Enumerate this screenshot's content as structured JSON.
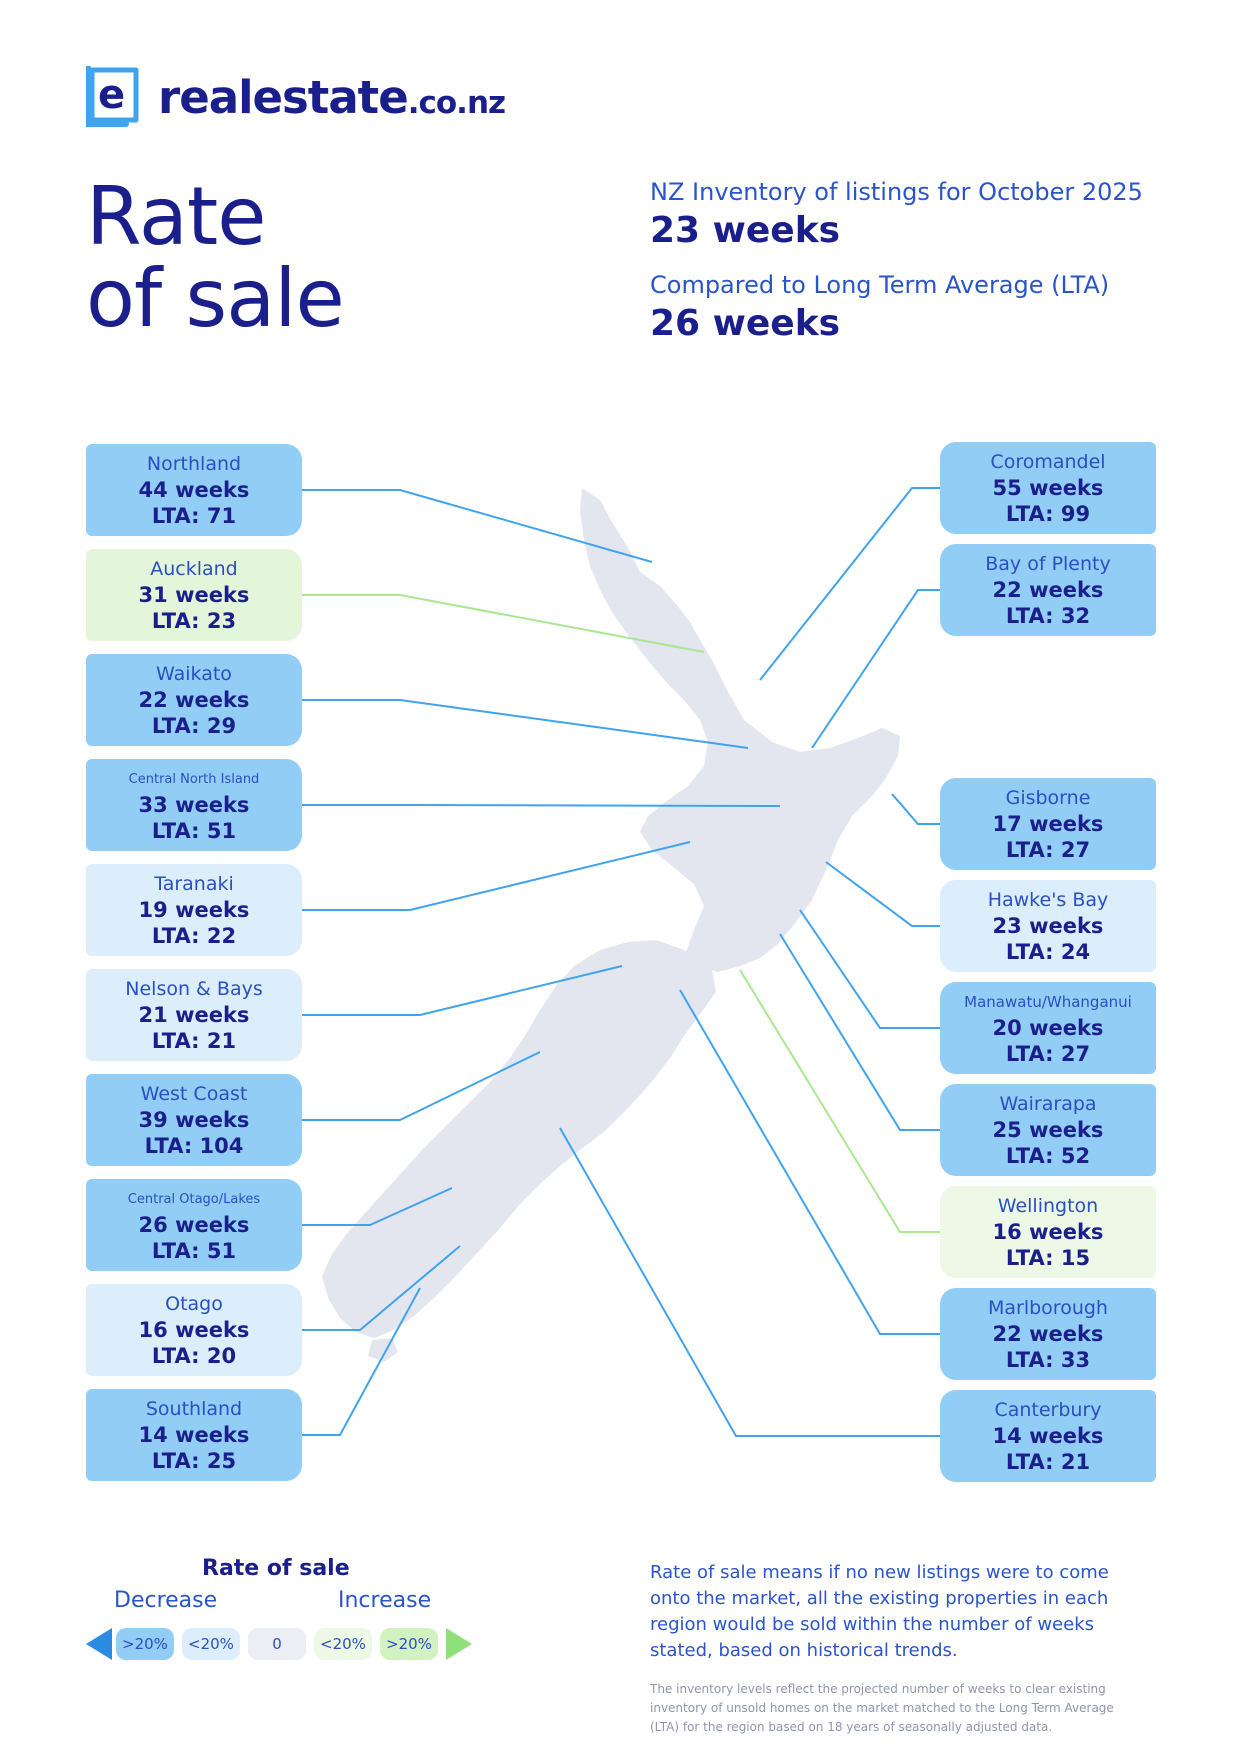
{
  "logo": {
    "brand": "realestate",
    "tld": ".co.nz"
  },
  "title": {
    "line1": "Rate",
    "line2": "of sale"
  },
  "stats": {
    "inventory_label": "NZ Inventory of listings for October 2025",
    "inventory_value": "23 weeks",
    "lta_label": "Compared to Long Term Average (LTA)",
    "lta_value": "26 weeks"
  },
  "colors": {
    "primary": "#1a1f8c",
    "accent": "#2a55c8",
    "line_blue": "#3fa3ee",
    "line_green": "#a8e890",
    "card_mid": "#92cdf6",
    "card_light": "#dceefc",
    "card_green": "#e4f6d9",
    "map_fill": "#e3e6ef"
  },
  "regions_left": [
    {
      "region": "Northland",
      "weeks": "44 weeks",
      "lta": "LTA: 71",
      "level": "decrease >20%"
    },
    {
      "region": "Auckland",
      "weeks": "31 weeks",
      "lta": "LTA: 23",
      "level": "increase >20%"
    },
    {
      "region": "Waikato",
      "weeks": "22 weeks",
      "lta": "LTA: 29",
      "level": "decrease >20%"
    },
    {
      "region": "Central North Island",
      "weeks": "33 weeks",
      "lta": "LTA: 51",
      "level": "decrease >20%"
    },
    {
      "region": "Taranaki",
      "weeks": "19 weeks",
      "lta": "LTA: 22",
      "level": "decrease <20%"
    },
    {
      "region": "Nelson & Bays",
      "weeks": "21 weeks",
      "lta": "LTA: 21",
      "level": "decrease <20%"
    },
    {
      "region": "West Coast",
      "weeks": "39 weeks",
      "lta": "LTA: 104",
      "level": "decrease >20%"
    },
    {
      "region": "Central Otago/Lakes",
      "weeks": "26 weeks",
      "lta": "LTA: 51",
      "level": "decrease >20%"
    },
    {
      "region": "Otago",
      "weeks": "16 weeks",
      "lta": "LTA: 20",
      "level": "decrease <20%"
    },
    {
      "region": "Southland",
      "weeks": "14 weeks",
      "lta": "LTA: 25",
      "level": "decrease >20%"
    }
  ],
  "regions_right": [
    {
      "region": "Coromandel",
      "weeks": "55 weeks",
      "lta": "LTA: 99",
      "level": "decrease >20%"
    },
    {
      "region": "Bay of Plenty",
      "weeks": "22 weeks",
      "lta": "LTA: 32",
      "level": "decrease >20%"
    },
    {
      "region": "Gisborne",
      "weeks": "17 weeks",
      "lta": "LTA: 27",
      "level": "decrease >20%"
    },
    {
      "region": "Hawke's Bay",
      "weeks": "23 weeks",
      "lta": "LTA: 24",
      "level": "decrease <20%"
    },
    {
      "region": "Manawatu/Whanganui",
      "weeks": "20 weeks",
      "lta": "LTA: 27",
      "level": "decrease >20%"
    },
    {
      "region": "Wairarapa",
      "weeks": "25 weeks",
      "lta": "LTA: 52",
      "level": "decrease >20%"
    },
    {
      "region": "Wellington",
      "weeks": "16 weeks",
      "lta": "LTA: 15",
      "level": "increase <20%"
    },
    {
      "region": "Marlborough",
      "weeks": "22 weeks",
      "lta": "LTA: 33",
      "level": "decrease >20%"
    },
    {
      "region": "Canterbury",
      "weeks": "14 weeks",
      "lta": "LTA: 21",
      "level": "decrease >20%"
    }
  ],
  "legend": {
    "title": "Rate of sale",
    "decrease": "Decrease",
    "increase": "Increase",
    "pills": [
      ">20%",
      "<20%",
      "0",
      "<20%",
      ">20%"
    ]
  },
  "note": {
    "main": "Rate of sale means if no new listings were to come onto the market, all the existing properties in each region would be sold within the number of weeks stated, based on historical trends.",
    "small": "The inventory levels reflect the projected number of weeks to clear existing inventory of unsold homes on the market matched to the Long Term Average (LTA) for the region based on 18 years of seasonally adjusted data."
  }
}
